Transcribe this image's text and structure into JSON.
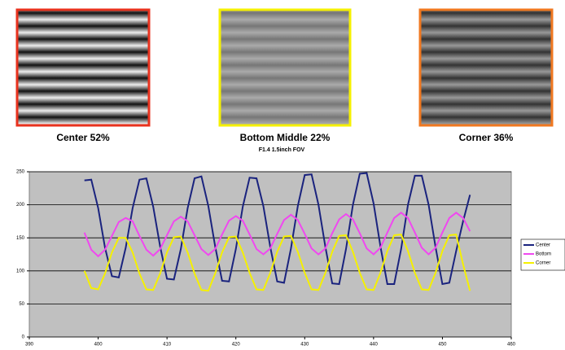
{
  "panels": [
    {
      "caption": "Center 52%",
      "color": "#e8321e"
    },
    {
      "caption": "Bottom Middle 22%",
      "color": "#f5f000"
    },
    {
      "caption": "Corner 36%",
      "color": "#f07820"
    }
  ],
  "chart_data": {
    "type": "line",
    "title": "F1.4 1.5inch FOV",
    "x": [
      398,
      399,
      400,
      401,
      402,
      403,
      404,
      405,
      406,
      407,
      408,
      409,
      410,
      411,
      412,
      413,
      414,
      415,
      416,
      417,
      418,
      419,
      420,
      421,
      422,
      423,
      424,
      425,
      426,
      427,
      428,
      429,
      430,
      431,
      432,
      433,
      434,
      435,
      436,
      437,
      438,
      439,
      440,
      441,
      442,
      443,
      444,
      445,
      446,
      447,
      448,
      449,
      450,
      451,
      452,
      453,
      454
    ],
    "series": [
      {
        "name": "Center",
        "color": "#1a237e",
        "values": [
          237,
          238,
          195,
          135,
          92,
          90,
          135,
          195,
          238,
          240,
          197,
          137,
          88,
          87,
          133,
          195,
          240,
          243,
          198,
          137,
          85,
          84,
          133,
          197,
          241,
          240,
          198,
          136,
          84,
          82,
          134,
          198,
          245,
          246,
          200,
          136,
          81,
          80,
          133,
          200,
          247,
          248,
          202,
          137,
          80,
          80,
          133,
          200,
          244,
          244,
          200,
          136,
          80,
          82,
          130,
          175,
          215
        ]
      },
      {
        "name": "Bottom",
        "color": "#f048f0",
        "values": [
          158,
          132,
          122,
          132,
          153,
          174,
          180,
          175,
          153,
          132,
          123,
          133,
          154,
          175,
          182,
          175,
          154,
          133,
          124,
          133,
          155,
          176,
          183,
          176,
          155,
          133,
          125,
          134,
          156,
          177,
          185,
          177,
          156,
          134,
          125,
          134,
          157,
          178,
          186,
          178,
          157,
          134,
          125,
          135,
          158,
          180,
          188,
          180,
          158,
          135,
          125,
          135,
          158,
          180,
          188,
          180,
          160
        ]
      },
      {
        "name": "Corner",
        "color": "#f5f000",
        "values": [
          100,
          74,
          72,
          96,
          128,
          150,
          150,
          128,
          96,
          72,
          71,
          96,
          128,
          151,
          152,
          128,
          96,
          71,
          70,
          96,
          128,
          151,
          152,
          128,
          97,
          72,
          71,
          97,
          129,
          152,
          153,
          129,
          97,
          72,
          71,
          97,
          129,
          153,
          154,
          129,
          97,
          72,
          71,
          97,
          130,
          154,
          155,
          130,
          97,
          72,
          71,
          97,
          130,
          154,
          155,
          110,
          70
        ]
      }
    ],
    "xlim": [
      390,
      460
    ],
    "xticks": [
      390,
      400,
      410,
      420,
      430,
      440,
      450,
      460
    ],
    "ylim": [
      0,
      250
    ],
    "yticks": [
      0,
      50,
      100,
      150,
      200,
      250
    ],
    "grid": true,
    "legend": "right",
    "background": "#c0c0c0"
  }
}
